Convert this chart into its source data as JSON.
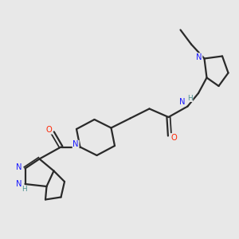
{
  "background_color": "#e8e8e8",
  "bond_color": "#2a2a2a",
  "N_color": "#1a1aff",
  "O_color": "#ff2200",
  "H_color": "#4a9090",
  "figsize": [
    3.0,
    3.0
  ],
  "dpi": 100,
  "xlim": [
    0,
    10
  ],
  "ylim": [
    0,
    10
  ],
  "lw": 1.6,
  "fs": 7.2
}
